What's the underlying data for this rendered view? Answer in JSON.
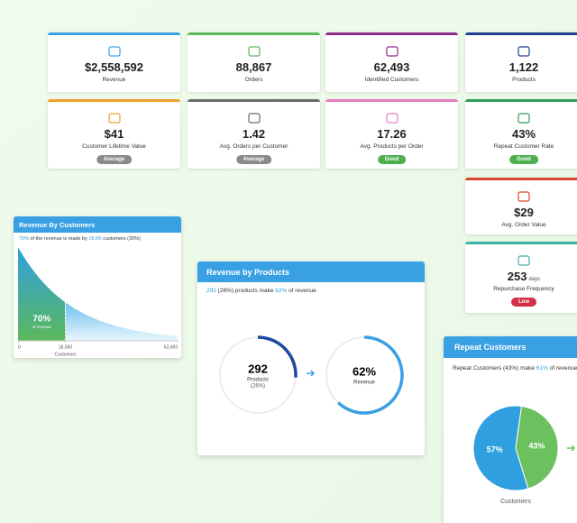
{
  "kpis": [
    {
      "value": "$2,558,592",
      "label": "Revenue",
      "color": "#3aa0e4"
    },
    {
      "value": "88,867",
      "label": "Orders",
      "color": "#5cb85c"
    },
    {
      "value": "62,493",
      "label": "Identified Customers",
      "color": "#8e2a8e"
    },
    {
      "value": "1,122",
      "label": "Products",
      "color": "#1f3f8f"
    },
    {
      "value": "$41",
      "label": "Customer Lifetime Value",
      "color": "#f0a030",
      "badge": "Average",
      "badge_color": "#8a8a8a"
    },
    {
      "value": "1.42",
      "label": "Avg. Orders per Customer",
      "color": "#6b6b6b",
      "badge": "Average",
      "badge_color": "#8a8a8a"
    },
    {
      "value": "17.26",
      "label": "Avg. Products per Order",
      "color": "#e87fc0",
      "badge": "Good",
      "badge_color": "#4caf50"
    },
    {
      "value": "43%",
      "label": "Repeat Customer Rate",
      "color": "#2e9e57",
      "badge": "Good",
      "badge_color": "#4caf50"
    },
    {
      "value": "$29",
      "label": "Avg. Order Value",
      "color": "#d9452b"
    },
    {
      "value": "253",
      "unit": "days",
      "label": "Repurchase Frequency",
      "color": "#3bb3a8",
      "badge": "Low",
      "badge_color": "#d32f4a"
    }
  ],
  "revenue_by_customers": {
    "title": "Revenue By Customers",
    "subtitle": [
      {
        "text": "70%",
        "accent": true
      },
      {
        "text": " of the revenue is made by "
      },
      {
        "text": "18.6K",
        "accent": true
      },
      {
        "text": " customers (30%)"
      }
    ],
    "share_label": "70%",
    "share_caption": "of revenue",
    "x_label": "Customers",
    "xlim": [
      0,
      62493
    ],
    "xticks": [
      0,
      {
        "value": 18560,
        "label": "18,560"
      },
      {
        "value": 62493,
        "label": "62,493"
      }
    ],
    "highlight_to": 18560
  },
  "revenue_by_products": {
    "title": "Revenue by Products",
    "subtitle": [
      {
        "text": "292",
        "accent": true
      },
      {
        "text": " (26%) products make "
      },
      {
        "text": "62%",
        "accent": true
      },
      {
        "text": " of revenue"
      }
    ],
    "products": {
      "value": "292",
      "label": "Products",
      "share": {
        "value": 26,
        "label": "(26%)"
      }
    },
    "revenue": {
      "share": {
        "value": 62,
        "label": "62%"
      },
      "label": "Revenue"
    }
  },
  "repeat_customers": {
    "title": "Repeat Customers",
    "subtitle": [
      {
        "text": "Repeat Customers (43%) make "
      },
      {
        "text": "61%",
        "accent": true
      },
      {
        "text": " of revenue"
      }
    ]
  },
  "chart_data": {
    "type": "pie",
    "values": [
      57,
      43
    ],
    "value_labels": [
      "57%",
      "43%"
    ],
    "colors": [
      "#2f9fe0",
      "#6cc05e"
    ],
    "x_label": "Customers"
  }
}
